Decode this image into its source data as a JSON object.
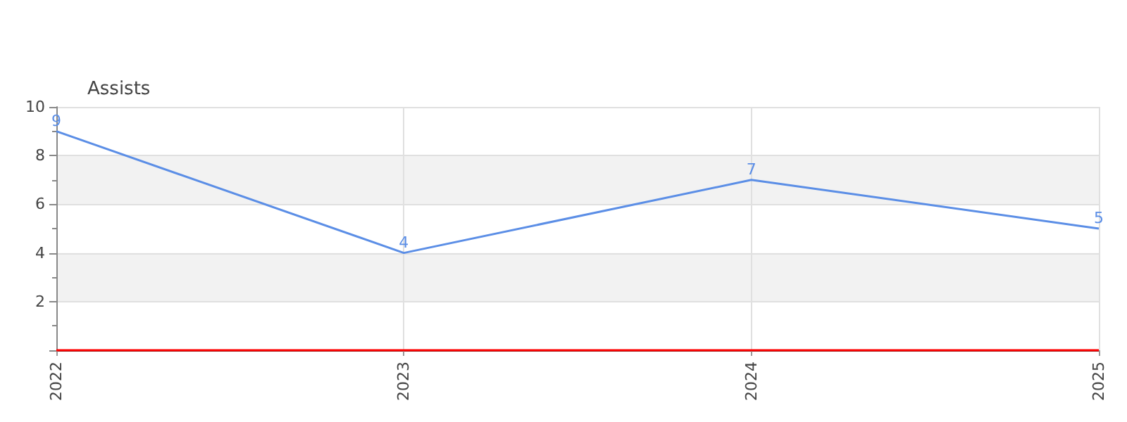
{
  "chart_data": {
    "type": "line",
    "ylabel": "Assists",
    "categories": [
      "2022",
      "2023",
      "2024",
      "2025"
    ],
    "series": [
      {
        "color": "#5b8ee6",
        "values": [
          9,
          4,
          7,
          5
        ]
      }
    ],
    "ylim": [
      0,
      10
    ],
    "yticks": [
      {
        "value": 0,
        "label": null
      },
      2,
      4,
      6,
      8,
      10
    ],
    "grid": true,
    "data_labels": true,
    "marker": "none",
    "line_style": "solid",
    "ref_lines": [
      {
        "axis": "y",
        "value": 0,
        "color": "#ff0000"
      }
    ]
  }
}
